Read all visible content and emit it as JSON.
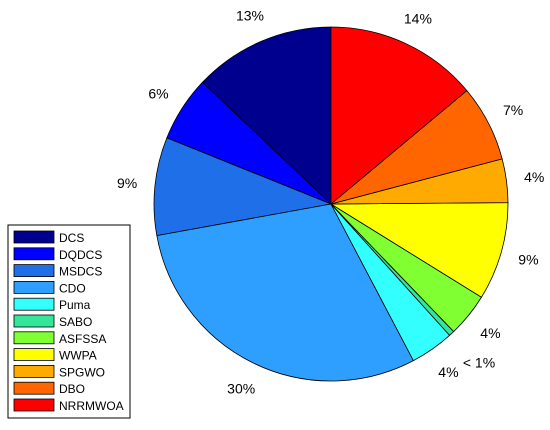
{
  "chart_data": {
    "type": "pie",
    "title": "",
    "legend_placement": "bottom-left",
    "series": [
      {
        "name": "DCS",
        "label": "13%",
        "value": 13,
        "color": "#00008f"
      },
      {
        "name": "DQDCS",
        "label": "6%",
        "value": 6,
        "color": "#0000ff"
      },
      {
        "name": "MSDCS",
        "label": "9%",
        "value": 9,
        "color": "#1e6fe8"
      },
      {
        "name": "CDO",
        "label": "30%",
        "value": 30,
        "color": "#2f9fff"
      },
      {
        "name": "Puma",
        "label": "4%",
        "value": 4,
        "color": "#33ffff"
      },
      {
        "name": "SABO",
        "label": "< 1%",
        "value": 0.5,
        "color": "#33e69a"
      },
      {
        "name": "ASFSSA",
        "label": "4%",
        "value": 4,
        "color": "#80ff33"
      },
      {
        "name": "WWPA",
        "label": "9%",
        "value": 9,
        "color": "#ffff00"
      },
      {
        "name": "SPGWO",
        "label": "4%",
        "value": 4,
        "color": "#ffaa00"
      },
      {
        "name": "DBO",
        "label": "7%",
        "value": 7,
        "color": "#ff6600"
      },
      {
        "name": "NRRMWOA",
        "label": "14%",
        "value": 14,
        "color": "#ff0000"
      }
    ]
  }
}
